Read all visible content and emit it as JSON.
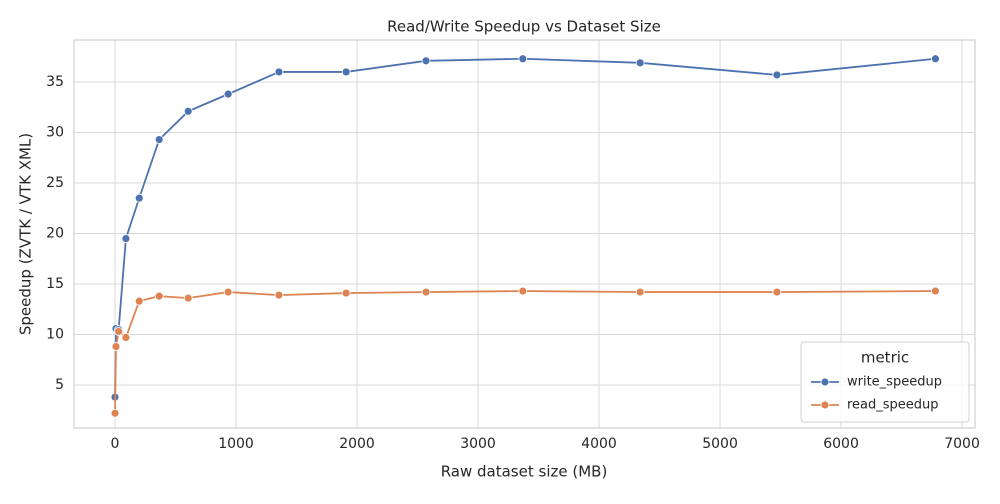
{
  "chart_data": {
    "type": "line",
    "title": "Read/Write Speedup vs Dataset Size",
    "x_label": "Raw dataset size (MB)",
    "y_label": "Speedup (ZVTK / VTK XML)",
    "x": [
      0,
      8,
      30,
      90,
      200,
      365,
      605,
      935,
      1355,
      1910,
      2570,
      3370,
      4340,
      5470,
      6780
    ],
    "series": [
      {
        "name": "write_speedup",
        "color": "#4c72b0",
        "values": [
          3.8,
          10.6,
          10.5,
          19.5,
          23.5,
          29.3,
          32.1,
          33.8,
          36.0,
          36.0,
          37.1,
          37.3,
          36.9,
          35.7,
          37.3
        ]
      },
      {
        "name": "read_speedup",
        "color": "#dd8452",
        "values": [
          2.2,
          8.8,
          10.3,
          9.7,
          13.3,
          13.8,
          13.6,
          14.2,
          13.9,
          14.1,
          14.2,
          14.3,
          14.2,
          14.2,
          14.3
        ]
      }
    ],
    "xlim": [
      -339,
      7107
    ],
    "ylim": [
      0.74,
      39.16
    ],
    "xticks": [
      0,
      1000,
      2000,
      3000,
      4000,
      5000,
      6000,
      7000
    ],
    "yticks": [
      5,
      10,
      15,
      20,
      25,
      30,
      35
    ],
    "grid": true,
    "legend_title": "metric",
    "legend_position": "lower-right"
  }
}
